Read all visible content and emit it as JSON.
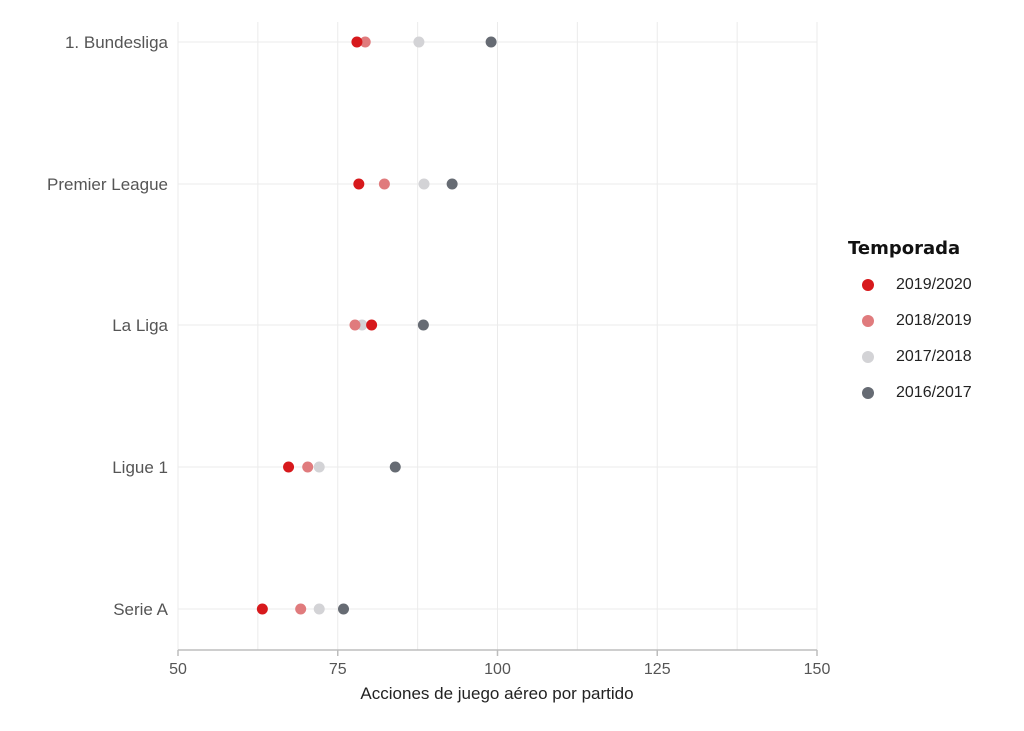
{
  "chart_data": {
    "type": "scatter",
    "categories": [
      "1. Bundesliga",
      "Premier League",
      "La Liga",
      "Ligue 1",
      "Serie A"
    ],
    "xlabel": "Acciones de juego aéreo por partido",
    "ylabel": "",
    "xlim": [
      50,
      150
    ],
    "xticks": [
      50,
      75,
      100,
      125,
      150
    ],
    "grid": true,
    "legend_title": "Temporada",
    "legend_position": "right",
    "series": [
      {
        "name": "2019/2020",
        "color": "#d7191c",
        "values": [
          78,
          78.3,
          80.3,
          67.3,
          63.2
        ]
      },
      {
        "name": "2018/2019",
        "color": "#e07b7d",
        "values": [
          79.3,
          82.3,
          77.7,
          70.3,
          69.2
        ]
      },
      {
        "name": "2017/2018",
        "color": "#d3d3d6",
        "values": [
          87.7,
          88.5,
          78.8,
          72.1,
          72.1
        ]
      },
      {
        "name": "2016/2017",
        "color": "#666b73",
        "values": [
          99,
          92.9,
          88.4,
          84,
          75.9
        ]
      }
    ]
  }
}
